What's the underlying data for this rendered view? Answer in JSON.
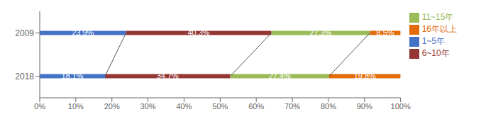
{
  "chart_data": {
    "type": "bar",
    "orientation": "horizontal",
    "stacked": true,
    "data_labels": true,
    "grid": false,
    "legend": "right",
    "categories": [
      "2009",
      "2018"
    ],
    "series": [
      {
        "name": "1~5年",
        "color": "#4472C4",
        "values": [
          23.9,
          18.1
        ],
        "value_labels": [
          "23.9%",
          "18.1%"
        ]
      },
      {
        "name": "6~10年",
        "color": "#943634",
        "values": [
          40.3,
          34.7
        ],
        "value_labels": [
          "40.3%",
          "34.7%"
        ]
      },
      {
        "name": "11~15年",
        "color": "#9BBB59",
        "values": [
          27.3,
          27.4
        ],
        "value_labels": [
          "27.3%",
          "27.4%"
        ]
      },
      {
        "name": "16年以上",
        "color": "#E26B0A",
        "values": [
          8.5,
          19.8
        ],
        "value_labels": [
          "8.5%",
          "19.8%"
        ]
      }
    ],
    "xlim": [
      0,
      100
    ],
    "xticks": [
      {
        "value": 0,
        "label": "0%"
      },
      {
        "value": 10,
        "label": "10%"
      },
      {
        "value": 20,
        "label": "20%"
      },
      {
        "value": 30,
        "label": "30%"
      },
      {
        "value": 40,
        "label": "40%"
      },
      {
        "value": 50,
        "label": "50%"
      },
      {
        "value": 60,
        "label": "60%"
      },
      {
        "value": 70,
        "label": "70%"
      },
      {
        "value": 80,
        "label": "80%"
      },
      {
        "value": 90,
        "label": "90%"
      },
      {
        "value": 100,
        "label": "100%"
      }
    ]
  }
}
